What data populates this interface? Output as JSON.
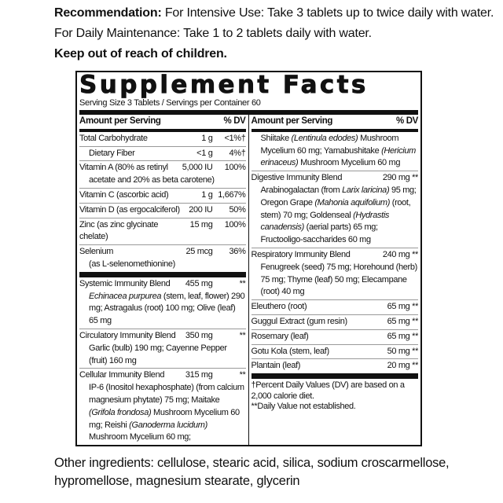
{
  "recommendation": {
    "label": "Recommendation:",
    "text": " For Intensive Use: Take 3 tablets up to twice daily with water. For Daily Maintenance: Take 1 to 2 tablets daily with water.",
    "warning": "Keep out of reach of children."
  },
  "facts": {
    "title": "Supplement Facts",
    "serving": "Serving Size 3 Tablets / Servings per Container 60",
    "header_amount": "Amount per Serving",
    "header_dv": "% DV",
    "left": [
      {
        "name": "Total Carbohydrate",
        "amount": "1 g",
        "dv": "<1%†"
      },
      {
        "name": "Dietary Fiber",
        "amount": "<1 g",
        "dv": "4%†",
        "indent": true
      },
      {
        "name": "Vitamin A (80% as retinyl",
        "amount": "5,000 IU",
        "dv": "100%",
        "detail": [
          [
            "acetate and 20% as beta carotene)",
            false
          ]
        ]
      },
      {
        "name": "Vitamin C (ascorbic acid)",
        "amount": "1 g",
        "dv": "1,667%"
      },
      {
        "name": "Vitamin D (as ergocalciferol)",
        "amount": "200 IU",
        "dv": "50%"
      },
      {
        "name": "Zinc (as zinc glycinate chelate)",
        "amount": "15 mg",
        "dv": "100%"
      },
      {
        "name": "Selenium",
        "amount": "25 mcg",
        "dv": "36%",
        "detail": [
          [
            "(as L-selenomethionine)",
            false
          ]
        ],
        "thick": true
      },
      {
        "name": "Systemic Immunity Blend",
        "amount": "455 mg",
        "dv": "**",
        "detail": [
          [
            "Echinacea purpurea",
            true
          ],
          [
            " (stem, leaf, flower) 290 mg; Astragalus (root) 100 mg; Olive (leaf) 65 mg",
            false
          ]
        ]
      },
      {
        "name": "Circulatory Immunity Blend",
        "amount": "350 mg",
        "dv": "**",
        "detail": [
          [
            "Garlic (bulb) 190 mg; Cayenne Pepper (fruit) 160 mg",
            false
          ]
        ]
      },
      {
        "name": "Cellular Immunity Blend",
        "amount": "315 mg",
        "dv": "**",
        "detail": [
          [
            "IP-6 (Inositol hexaphosphate) (from calcium magnesium phytate) 75 mg; Maitake ",
            false
          ],
          [
            "(Grifola frondosa)",
            true
          ],
          [
            " Mushroom Mycelium 60 mg; Reishi ",
            false
          ],
          [
            "(Ganoderma lucidum)",
            true
          ],
          [
            " Mushroom Mycelium 60 mg;",
            false
          ]
        ],
        "last": true
      }
    ],
    "right": [
      {
        "detail": [
          [
            "Shiitake ",
            false
          ],
          [
            "(Lentinula edodes)",
            true
          ],
          [
            " Mushroom Mycelium 60 mg; Yamabushitake ",
            false
          ],
          [
            "(Hericium erinaceus)",
            true
          ],
          [
            " Mushroom Mycelium 60 mg",
            false
          ]
        ]
      },
      {
        "name": "Digestive Immunity Blend",
        "amount": "290 mg **",
        "detail": [
          [
            "Arabinogalactan (from ",
            false
          ],
          [
            "Larix laricina)",
            true
          ],
          [
            " 95 mg; Oregon Grape ",
            false
          ],
          [
            "(Mahonia aquifolium)",
            true
          ],
          [
            " (root, stem) 70 mg; Goldenseal ",
            false
          ],
          [
            "(Hydrastis canadensis)",
            true
          ],
          [
            " (aerial parts) 65 mg; Fructooligo-saccharides 60 mg",
            false
          ]
        ]
      },
      {
        "name": "Respiratory Immunity Blend",
        "amount": "240 mg **",
        "detail": [
          [
            "Fenugreek (seed) 75 mg; Horehound (herb) 75 mg; Thyme (leaf) 50 mg; Elecampane (root) 40 mg",
            false
          ]
        ]
      },
      {
        "name": "Eleuthero (root)",
        "amount": "65 mg **"
      },
      {
        "name": "Guggul Extract (gum resin)",
        "amount": "65 mg **"
      },
      {
        "name": "Rosemary (leaf)",
        "amount": "65 mg **"
      },
      {
        "name": "Gotu Kola (stem, leaf)",
        "amount": "50 mg **"
      },
      {
        "name": "Plantain (leaf)",
        "amount": "20 mg **",
        "thick": true
      }
    ],
    "footnote_dv": "†Percent Daily Values (DV) are based on a 2,000 calorie diet.",
    "footnote_na": "**Daily Value not established."
  },
  "other_ingredients": "Other ingredients: cellulose, stearic acid, silica, sodium croscarmellose, hypromellose, magnesium stearate, glycerin"
}
